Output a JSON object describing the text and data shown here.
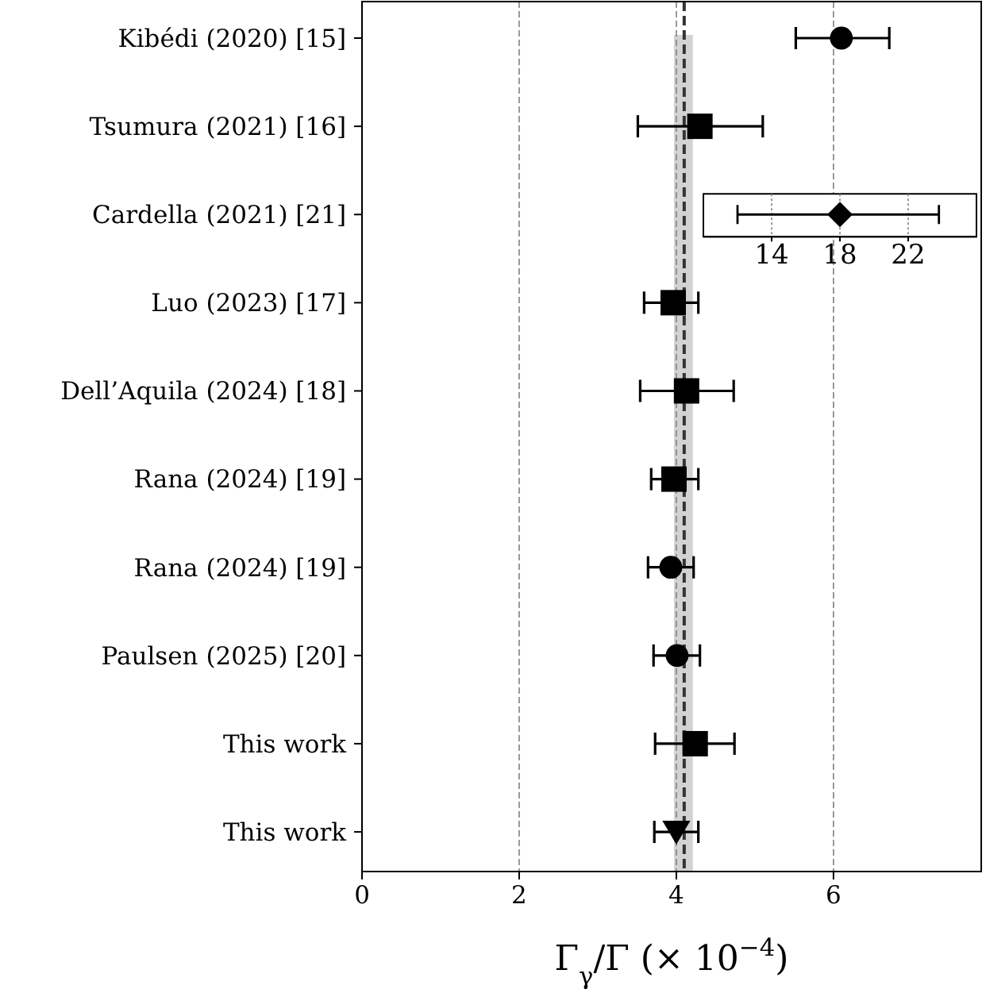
{
  "chart_data": {
    "type": "scatter",
    "orientation": "horizontal",
    "categories": [
      "Kibédi (2020) [15]",
      "Tsumura (2021) [16]",
      "Cardella (2021) [21]",
      "Luo (2023) [17]",
      "Dell’Aquila (2024) [18]",
      "Rana (2024) [19]",
      "Rana (2024) [19]",
      "Paulsen (2025) [20]",
      "This work",
      "This work"
    ],
    "series": [
      {
        "color": "#000000",
        "marker": "circle",
        "values": [
          6.1,
          null,
          null,
          null,
          null,
          null,
          3.93,
          4.01,
          null,
          null
        ],
        "errors": [
          [
            5.52,
            6.71
          ],
          null,
          null,
          null,
          null,
          null,
          [
            3.64,
            4.22
          ],
          [
            3.71,
            4.3
          ],
          null,
          null
        ]
      },
      {
        "color": "#000000",
        "marker": "square",
        "values": [
          null,
          4.3,
          null,
          3.96,
          4.13,
          3.97,
          null,
          null,
          4.24,
          null
        ],
        "errors": [
          null,
          [
            3.51,
            5.1
          ],
          null,
          [
            3.59,
            4.28
          ],
          [
            3.54,
            4.73
          ],
          [
            3.68,
            4.28
          ],
          null,
          null,
          [
            3.73,
            4.74
          ],
          null
        ]
      },
      {
        "color": "#000000",
        "marker": "triangle",
        "values": [
          null,
          null,
          null,
          null,
          null,
          null,
          null,
          null,
          null,
          4.0
        ],
        "errors": [
          null,
          null,
          null,
          null,
          null,
          null,
          null,
          null,
          null,
          [
            3.72,
            4.28
          ]
        ]
      },
      {
        "color": "#000000",
        "marker": "diamond",
        "axis": "x2",
        "values": [
          null,
          null,
          18,
          null,
          null,
          null,
          null,
          null,
          null,
          null
        ],
        "errors": [
          null,
          null,
          [
            12.0,
            23.8
          ],
          null,
          null,
          null,
          null,
          null,
          null,
          null
        ]
      }
    ],
    "xlim": [
      0,
      7.88
    ],
    "xticks": [
      0,
      2,
      4,
      6
    ],
    "x2lim": [
      10,
      26
    ],
    "x2ticks": [
      14,
      18,
      22
    ],
    "xlabel": "Γ$_{γ}$/Γ (× 10$^{−4}$)",
    "grid": "x",
    "ref_lines": [
      {
        "axis": "x",
        "value": 4.1,
        "color": "#333333",
        "line_style": "dashed"
      }
    ],
    "bands": [
      {
        "axis": "x",
        "from": 3.97,
        "to": 4.21,
        "color": "#d3d3d3"
      }
    ]
  }
}
